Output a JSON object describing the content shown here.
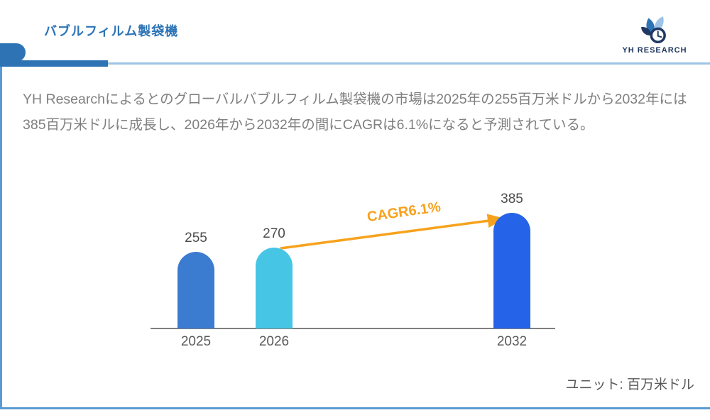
{
  "header": {
    "title": "バブルフィルム製袋機",
    "logo_text": "YH RESEARCH"
  },
  "summary": {
    "text": "YH Researchによるとのグローバルバブルフィルム製袋機の市場は2025年の255百万米ドルから2032年には385百万米ドルに成長し、2026年から2032年の間にCAGRは6.1%になると予測されている。"
  },
  "chart_data": {
    "type": "bar",
    "title": "",
    "categories": [
      "2025",
      "2026",
      "2032"
    ],
    "values": [
      255,
      270,
      385
    ],
    "bar_colors": [
      "#3b7bd0",
      "#47c5e5",
      "#2563e8"
    ],
    "ylim": [
      0,
      480
    ],
    "grid": false,
    "legend": false,
    "annotation": {
      "label": "CAGR6.1%",
      "color": "#f7a21c",
      "from_category": "2026",
      "to_category": "2032"
    },
    "unit_note": "ユニット: 百万米ドル"
  },
  "colors": {
    "accent_blue": "#2e74b5",
    "light_blue_line": "#9dc3e6",
    "border_blue": "#5b9bd5",
    "text_gray": "#7f7f7f",
    "axis_gray": "#7f7f7f",
    "label_gray": "#595959",
    "orange": "#f7a21c"
  }
}
